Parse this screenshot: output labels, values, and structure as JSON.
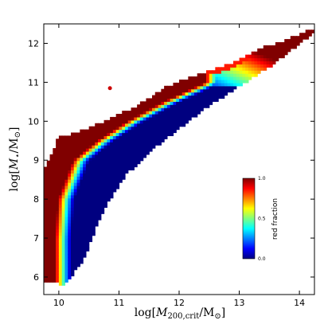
{
  "chart_data": {
    "type": "heatmap",
    "xlabel": "log[M_200,crit/M_⊙]",
    "ylabel": "log[M_⋆/M_⊙]",
    "xlim": [
      9.75,
      14.25
    ],
    "ylim": [
      5.55,
      12.5
    ],
    "xticks": [
      "10",
      "11",
      "12",
      "13",
      "14"
    ],
    "yticks": [
      "6",
      "7",
      "8",
      "9",
      "10",
      "11",
      "12"
    ],
    "colorbar": {
      "label": "red fraction",
      "ticks": [
        "0.0",
        "0.5",
        "1.0"
      ],
      "range": [
        0,
        1
      ],
      "colormap": "jet"
    },
    "description_values": {
      "upper_envelope": [
        [
          9.75,
          8.7
        ],
        [
          10.0,
          9.6
        ],
        [
          10.3,
          9.7
        ],
        [
          10.6,
          9.9
        ],
        [
          10.9,
          10.1
        ],
        [
          11.3,
          10.4
        ],
        [
          11.8,
          10.9
        ],
        [
          12.3,
          11.2
        ],
        [
          12.9,
          11.5
        ],
        [
          13.4,
          11.9
        ],
        [
          13.8,
          12.1
        ],
        [
          14.25,
          12.4
        ]
      ],
      "lower_envelope": [
        [
          9.75,
          5.9
        ],
        [
          10.1,
          5.8
        ],
        [
          10.4,
          6.4
        ],
        [
          10.7,
          7.6
        ],
        [
          11.1,
          8.6
        ],
        [
          11.5,
          9.2
        ],
        [
          12.0,
          9.8
        ],
        [
          12.5,
          10.4
        ],
        [
          13.0,
          10.9
        ],
        [
          13.6,
          11.5
        ],
        [
          14.25,
          12.3
        ]
      ],
      "blue_ridge_halo_mass": [
        [
          5.8,
          10.1
        ],
        [
          7.0,
          10.1
        ],
        [
          8.0,
          10.15
        ],
        [
          9.0,
          10.4
        ],
        [
          9.5,
          10.8
        ],
        [
          10.0,
          11.3
        ],
        [
          10.5,
          11.9
        ],
        [
          11.0,
          12.6
        ]
      ],
      "red_zone_halo_mass_offset": 1.0,
      "satellite_blob": [
        10.85,
        10.85
      ]
    }
  }
}
